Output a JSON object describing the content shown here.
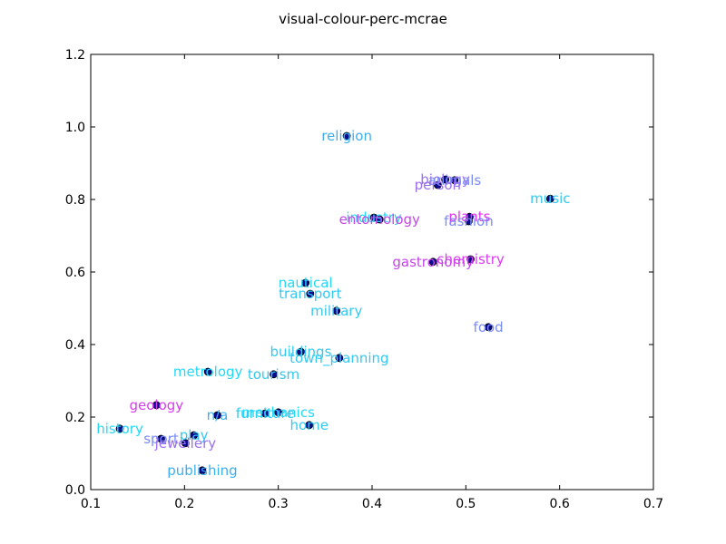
{
  "chart_data": {
    "type": "scatter",
    "title": "visual-colour-perc-mcrae",
    "xlabel": "",
    "ylabel": "",
    "xlim": [
      0.1,
      0.7
    ],
    "ylim": [
      0.0,
      1.2
    ],
    "xticks": [
      "0.1",
      "0.2",
      "0.3",
      "0.4",
      "0.5",
      "0.6",
      "0.7"
    ],
    "yticks": [
      "0.0",
      "0.2",
      "0.4",
      "0.6",
      "0.8",
      "1.0",
      "1.2"
    ],
    "grid": false,
    "legend": "none",
    "marker_color": "#0a0a8c",
    "marker_edge": "#000000",
    "points": [
      {
        "label": "religion",
        "x": 0.373,
        "y": 0.975,
        "color": "#3bb0f0"
      },
      {
        "label": "biology",
        "x": 0.478,
        "y": 0.855,
        "color": "#9a70f0"
      },
      {
        "label": "animals",
        "x": 0.488,
        "y": 0.853,
        "color": "#7a8cf8"
      },
      {
        "label": "person",
        "x": 0.47,
        "y": 0.84,
        "color": "#9a70f0"
      },
      {
        "label": "music",
        "x": 0.59,
        "y": 0.802,
        "color": "#33c8f0"
      },
      {
        "label": "industry",
        "x": 0.402,
        "y": 0.75,
        "color": "#22d8f8"
      },
      {
        "label": "entomology",
        "x": 0.408,
        "y": 0.745,
        "color": "#c545e8"
      },
      {
        "label": "plants",
        "x": 0.504,
        "y": 0.752,
        "color": "#e030f0"
      },
      {
        "label": "fashion",
        "x": 0.503,
        "y": 0.74,
        "color": "#7a8cf8"
      },
      {
        "label": "gastronomy",
        "x": 0.465,
        "y": 0.628,
        "color": "#c545e8"
      },
      {
        "label": "chemistry",
        "x": 0.505,
        "y": 0.635,
        "color": "#d83cf0"
      },
      {
        "label": "nautical",
        "x": 0.329,
        "y": 0.57,
        "color": "#22d8f8"
      },
      {
        "label": "transport",
        "x": 0.334,
        "y": 0.54,
        "color": "#33c8f0"
      },
      {
        "label": "military",
        "x": 0.362,
        "y": 0.493,
        "color": "#33c8f0"
      },
      {
        "label": "food",
        "x": 0.524,
        "y": 0.448,
        "color": "#7a8cf8"
      },
      {
        "label": "buildings",
        "x": 0.324,
        "y": 0.38,
        "color": "#33c8f0"
      },
      {
        "label": "town_planning",
        "x": 0.365,
        "y": 0.363,
        "color": "#33c8f0"
      },
      {
        "label": "metrology",
        "x": 0.225,
        "y": 0.325,
        "color": "#22d8f8"
      },
      {
        "label": "tourism",
        "x": 0.295,
        "y": 0.318,
        "color": "#33c8f0"
      },
      {
        "label": "geology",
        "x": 0.17,
        "y": 0.233,
        "color": "#d83cf0"
      },
      {
        "label": "n/a",
        "x": 0.235,
        "y": 0.205,
        "color": "#3bb0f0"
      },
      {
        "label": "furniture",
        "x": 0.286,
        "y": 0.21,
        "color": "#33c8f0"
      },
      {
        "label": "mechanics",
        "x": 0.3,
        "y": 0.213,
        "color": "#22d8f8"
      },
      {
        "label": "history",
        "x": 0.131,
        "y": 0.168,
        "color": "#22d8f8"
      },
      {
        "label": "home",
        "x": 0.333,
        "y": 0.178,
        "color": "#33c8f0"
      },
      {
        "label": "play",
        "x": 0.21,
        "y": 0.15,
        "color": "#33c8f0"
      },
      {
        "label": "sport",
        "x": 0.175,
        "y": 0.14,
        "color": "#7a8cf8"
      },
      {
        "label": "jewellery",
        "x": 0.201,
        "y": 0.128,
        "color": "#9a70f0"
      },
      {
        "label": "publishing",
        "x": 0.219,
        "y": 0.053,
        "color": "#3bb0f0"
      }
    ]
  }
}
